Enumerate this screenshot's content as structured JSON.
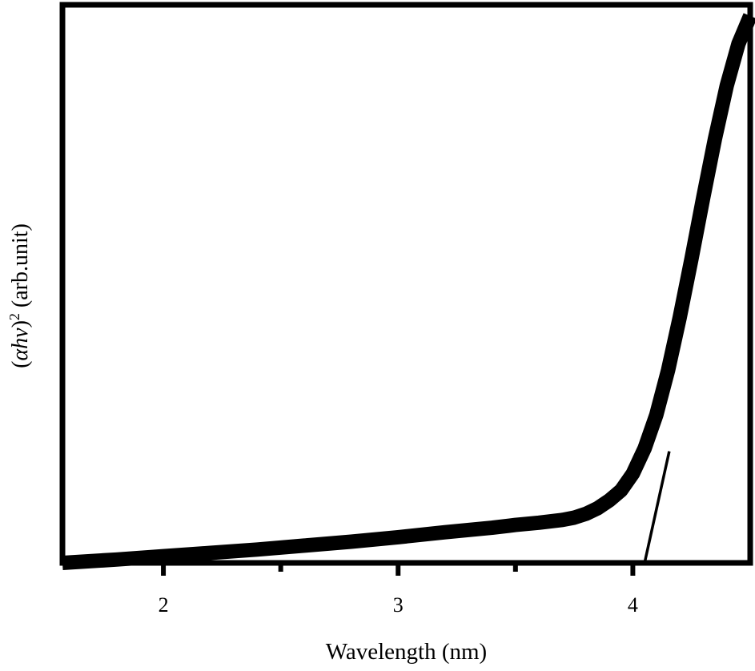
{
  "chart_data": {
    "type": "line",
    "title": "",
    "xlabel": "Wavelength (nm)",
    "ylabel": {
      "open": "(",
      "alpha": "α",
      "hv": "hv",
      "close": ")",
      "power": "2",
      "unit": " (arb.unit)"
    },
    "xlim": [
      1.57,
      4.5
    ],
    "ylim": [
      0,
      1
    ],
    "x_ticks": [
      2,
      3,
      4
    ],
    "x_tick_labels": [
      "2",
      "3",
      "4"
    ],
    "x_minor_ticks": [
      2.5,
      3.5
    ],
    "y_ticks": [],
    "grid": false,
    "legend": "none",
    "series": [
      {
        "x": [
          1.57,
          1.8,
          2.0,
          2.2,
          2.4,
          2.6,
          2.8,
          3.0,
          3.2,
          3.4,
          3.5,
          3.6,
          3.7,
          3.75,
          3.8,
          3.85,
          3.9,
          3.95,
          4.0,
          4.05,
          4.1,
          4.15,
          4.2,
          4.25,
          4.3,
          4.35,
          4.4,
          4.45,
          4.5
        ],
        "y": [
          0.0,
          0.006,
          0.012,
          0.018,
          0.024,
          0.031,
          0.038,
          0.046,
          0.055,
          0.063,
          0.068,
          0.072,
          0.077,
          0.081,
          0.088,
          0.098,
          0.112,
          0.13,
          0.16,
          0.205,
          0.265,
          0.345,
          0.44,
          0.545,
          0.655,
          0.76,
          0.855,
          0.93,
          0.98
        ]
      },
      {
        "x": [
          4.05,
          4.155
        ],
        "y": [
          0.0,
          0.2
        ]
      }
    ]
  }
}
